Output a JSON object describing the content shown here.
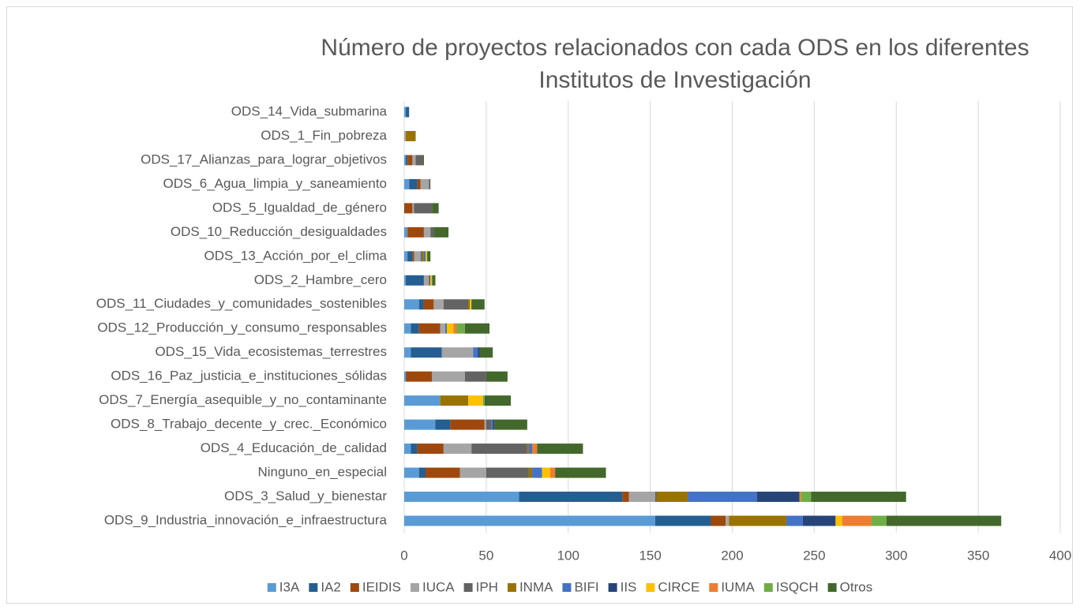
{
  "chart_data": {
    "type": "stacked_bar_horizontal",
    "title": "Número de proyectos relacionados con cada ODS en los diferentes Institutos de Investigación",
    "categories": [
      "ODS_14_Vida_submarina",
      "ODS_1_Fin_pobreza",
      "ODS_17_Alianzas_para_lograr_objetivos",
      "ODS_6_Agua_limpia_y_saneamiento",
      "ODS_5_Igualdad_de_género",
      "ODS_10_Reducción_desigualdades",
      "ODS_13_Acción_por_el_clima",
      "ODS_2_Hambre_cero",
      "ODS_11_Ciudades_y_comunidades_sostenibles",
      "ODS_12_Producción_y_consumo_responsables",
      "ODS_15_Vida_ecosistemas_terrestres",
      "ODS_16_Paz_justicia_e_instituciones_sólidas",
      "ODS_7_Energía_asequible_y_no_contaminante",
      "ODS_8_Trabajo_decente_y_crec._Económico",
      "ODS_4_Educación_de_calidad",
      "Ninguno_en_especial",
      "ODS_3_Salud_y_bienestar",
      "ODS_9_Industria_innovación_e_infraestructura"
    ],
    "series": [
      {
        "name": "I3A",
        "color": "#5b9bd5",
        "values": [
          1,
          0,
          1,
          3,
          0,
          2,
          2,
          1,
          9,
          4,
          4,
          1,
          22,
          19,
          4,
          9,
          70,
          153
        ]
      },
      {
        "name": "IA2",
        "color": "#255e91",
        "values": [
          2,
          0,
          1,
          5,
          0,
          0,
          3,
          11,
          3,
          5,
          19,
          0,
          0,
          9,
          4,
          4,
          63,
          34
        ]
      },
      {
        "name": "IEIDIS",
        "color": "#9e480e",
        "values": [
          0,
          0,
          3,
          2,
          5,
          10,
          1,
          0,
          6,
          13,
          0,
          16,
          0,
          21,
          16,
          21,
          4,
          9
        ]
      },
      {
        "name": "IUCA",
        "color": "#a5a5a5",
        "values": [
          0,
          1,
          2,
          5,
          1,
          4,
          4,
          3,
          6,
          3,
          19,
          20,
          0,
          1,
          17,
          16,
          16,
          2
        ]
      },
      {
        "name": "IPH",
        "color": "#636363",
        "values": [
          0,
          0,
          4,
          1,
          11,
          2,
          1,
          1,
          15,
          0,
          0,
          13,
          0,
          3,
          34,
          26,
          1,
          0
        ]
      },
      {
        "name": "INMA",
        "color": "#997300",
        "values": [
          0,
          6,
          0,
          0,
          0,
          0,
          1,
          0,
          1,
          0,
          0,
          0,
          17,
          0,
          1,
          2,
          19,
          35
        ]
      },
      {
        "name": "BIFI",
        "color": "#4472c4",
        "values": [
          0,
          0,
          0,
          0,
          0,
          0,
          1,
          0,
          0,
          1,
          3,
          0,
          0,
          1,
          2,
          6,
          42,
          10
        ]
      },
      {
        "name": "IIS",
        "color": "#264478",
        "values": [
          0,
          0,
          0,
          0,
          0,
          0,
          0,
          0,
          0,
          0,
          1,
          0,
          0,
          1,
          0,
          0,
          26,
          20
        ]
      },
      {
        "name": "CIRCE",
        "color": "#ffc000",
        "values": [
          0,
          0,
          0,
          0,
          0,
          0,
          1,
          1,
          1,
          4,
          0,
          0,
          9,
          0,
          0,
          5,
          0,
          4
        ]
      },
      {
        "name": "IUMA",
        "color": "#ed7d31",
        "values": [
          0,
          0,
          0,
          0,
          0,
          0,
          0,
          0,
          0,
          2,
          0,
          0,
          0,
          0,
          3,
          3,
          1,
          18
        ]
      },
      {
        "name": "ISQCH",
        "color": "#70ad47",
        "values": [
          0,
          0,
          0,
          0,
          0,
          0,
          0,
          0,
          0,
          5,
          0,
          0,
          1,
          0,
          0,
          0,
          6,
          9
        ]
      },
      {
        "name": "Otros",
        "color": "#43682b",
        "values": [
          0,
          0,
          1,
          0,
          4,
          9,
          2,
          2,
          8,
          15,
          8,
          13,
          16,
          20,
          28,
          31,
          58,
          70
        ]
      }
    ],
    "xlim": [
      0,
      400
    ],
    "xticks": [
      0,
      50,
      100,
      150,
      200,
      250,
      300,
      350,
      400
    ],
    "grid": true,
    "legend": "bottom"
  }
}
